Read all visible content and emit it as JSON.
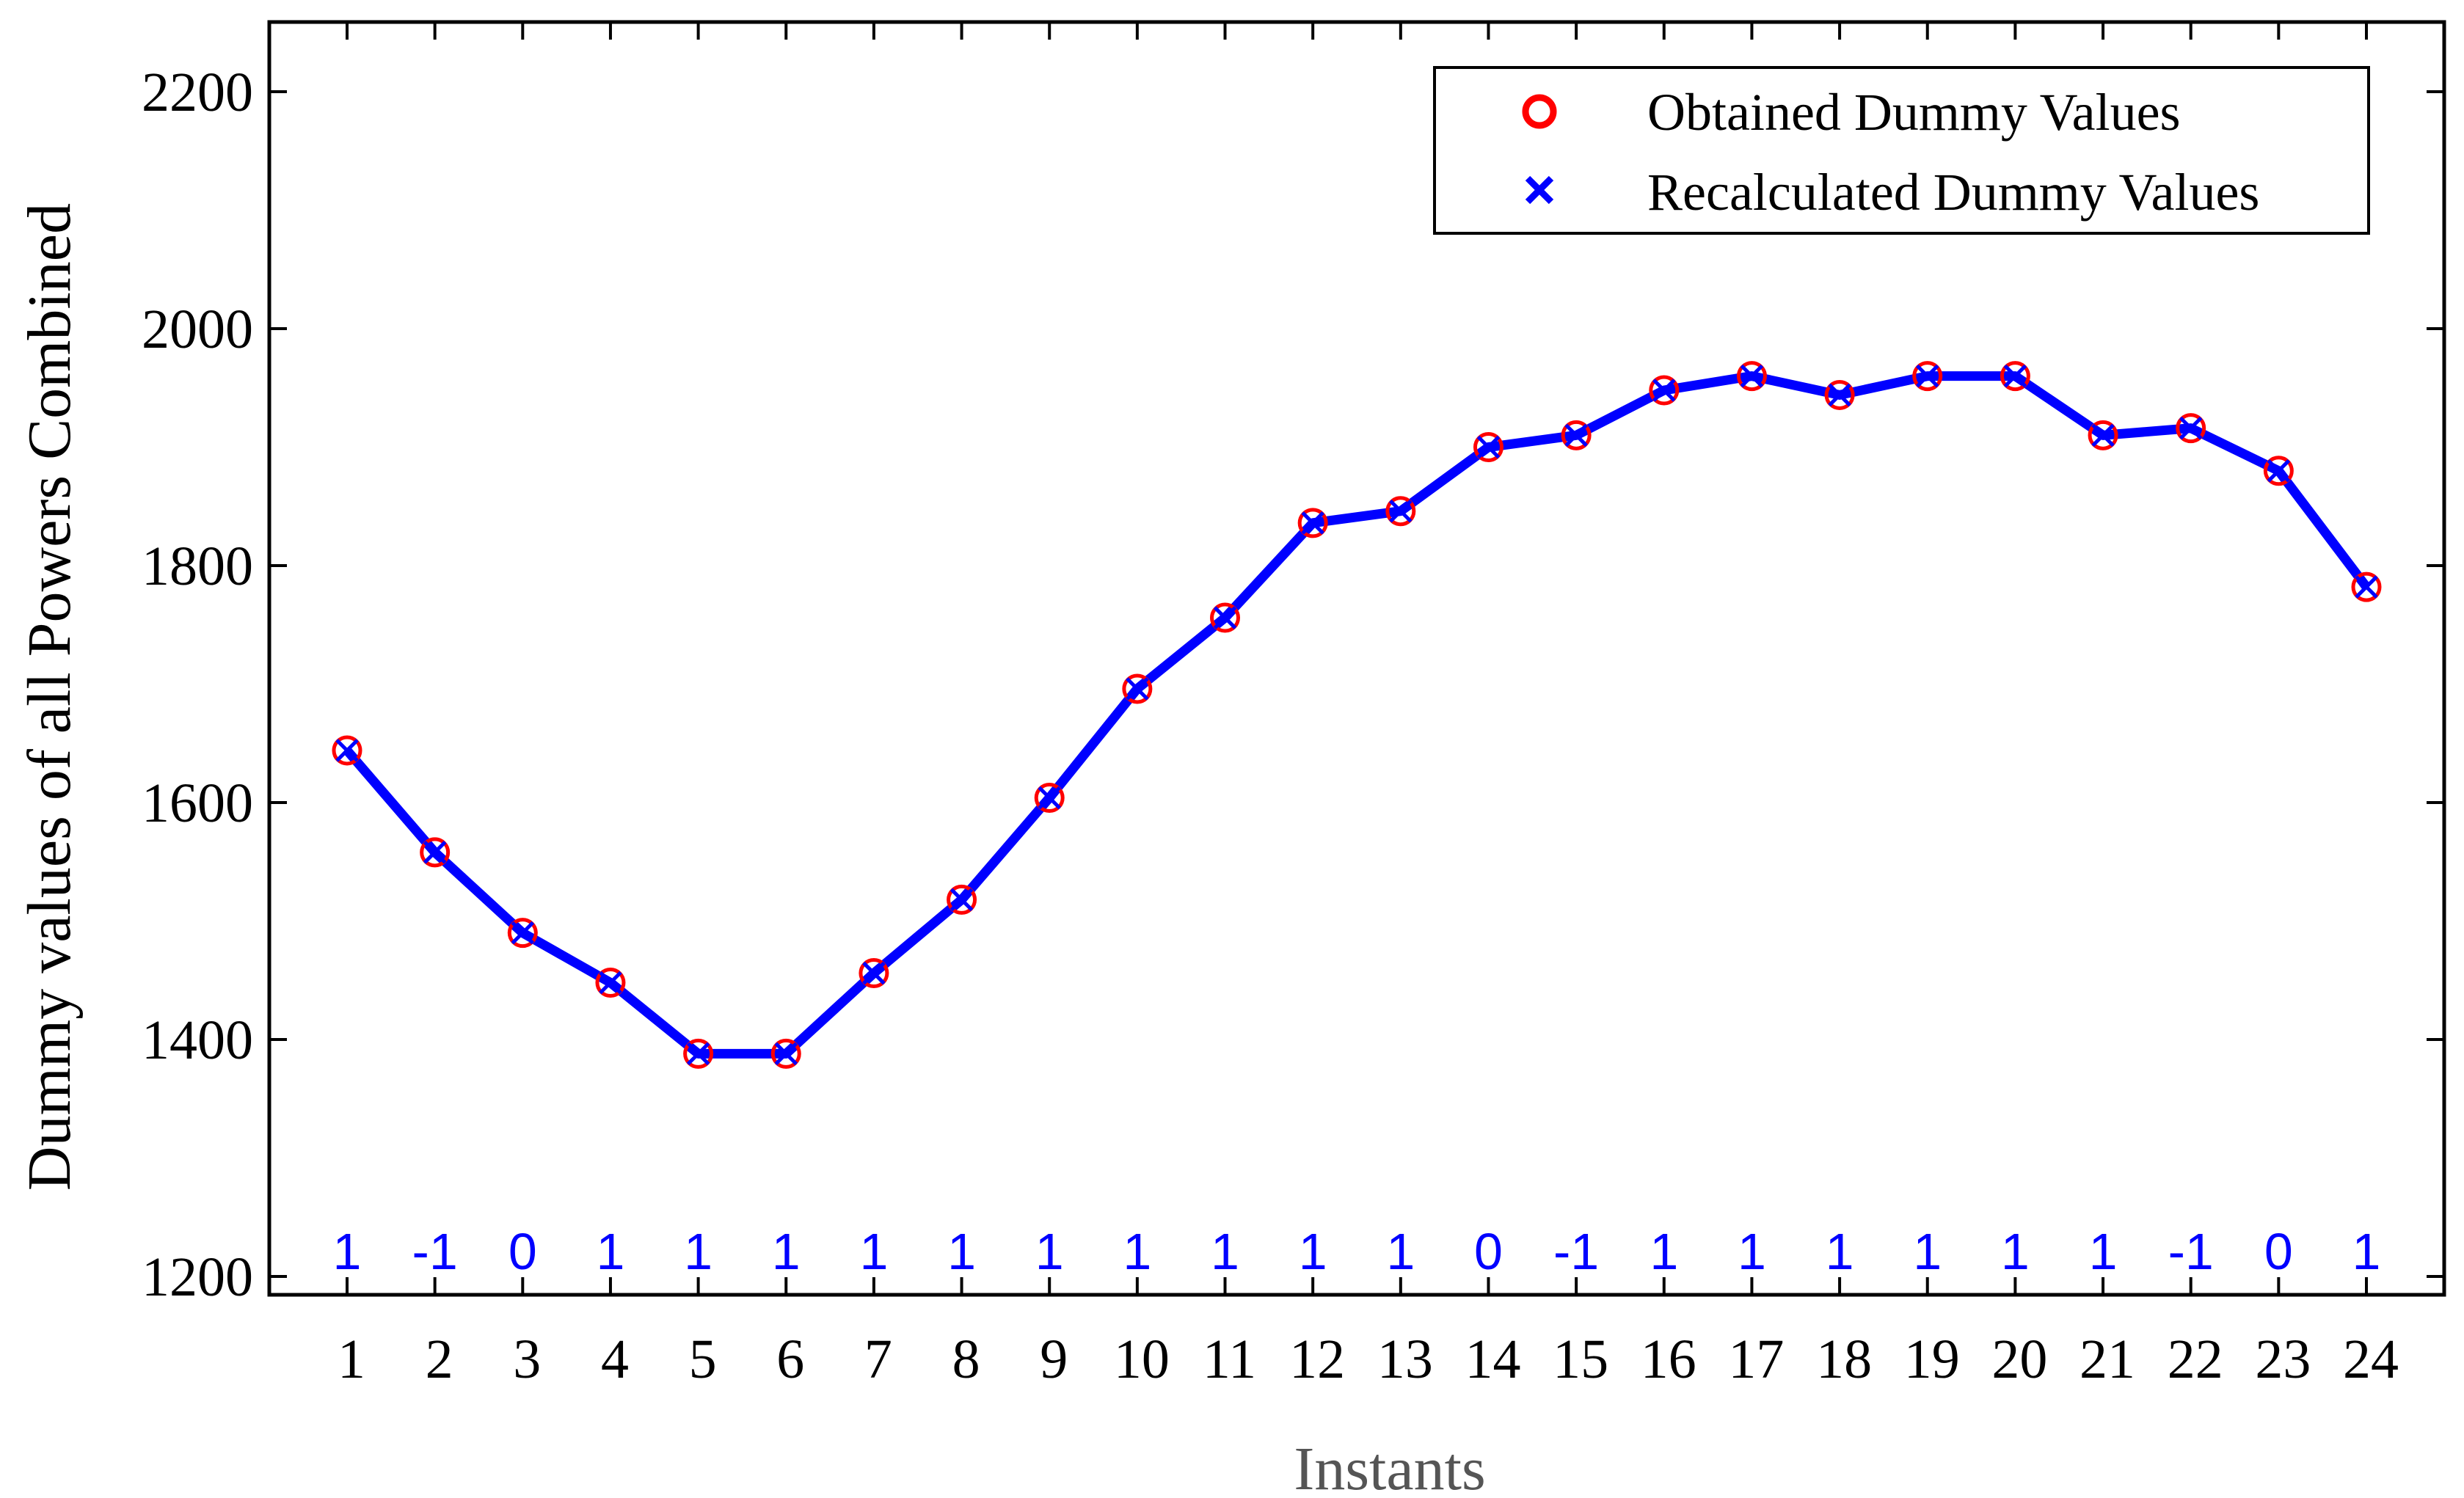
{
  "chart_data": {
    "type": "line",
    "xlabel": "Instants",
    "ylabel": "Dummy values of all Powers Combined",
    "x": [
      1,
      2,
      3,
      4,
      5,
      6,
      7,
      8,
      9,
      10,
      11,
      12,
      13,
      14,
      15,
      16,
      17,
      18,
      19,
      20,
      21,
      22,
      23,
      24
    ],
    "x_tick_labels": [
      "1",
      "2",
      "3",
      "4",
      "5",
      "6",
      "7",
      "8",
      "9",
      "10",
      "11",
      "12",
      "13",
      "14",
      "15",
      "16",
      "17",
      "18",
      "19",
      "20",
      "21",
      "22",
      "23",
      "24"
    ],
    "y_ticks": [
      1200,
      1400,
      1600,
      1800,
      2000,
      2200
    ],
    "y_tick_labels": [
      "1200",
      "1400",
      "1600",
      "1800",
      "2000",
      "2200"
    ],
    "xlim": [
      0,
      25
    ],
    "ylim": [
      1180,
      2260
    ],
    "grid": false,
    "legend_position": "top-right",
    "series": [
      {
        "name": "Obtained Dummy Values",
        "marker": "circle",
        "color": "#ff0000",
        "values": [
          1644,
          1558,
          1490,
          1448,
          1388,
          1388,
          1456,
          1518,
          1604,
          1696,
          1756,
          1836,
          1846,
          1900,
          1910,
          1948,
          1960,
          1944,
          1960,
          1960,
          1910,
          1916,
          1880,
          1782
        ]
      },
      {
        "name": "Recalculated Dummy Values",
        "marker": "x",
        "color": "#0000ff",
        "values": [
          1644,
          1558,
          1490,
          1448,
          1388,
          1388,
          1456,
          1518,
          1604,
          1696,
          1756,
          1836,
          1846,
          1900,
          1910,
          1948,
          1960,
          1944,
          1960,
          1960,
          1910,
          1916,
          1880,
          1782
        ]
      }
    ],
    "annotations": [
      "1",
      "-1",
      "0",
      "1",
      "1",
      "1",
      "1",
      "1",
      "1",
      "1",
      "1",
      "1",
      "1",
      "0",
      "-1",
      "1",
      "1",
      "1",
      "1",
      "1",
      "1",
      "-1",
      "0",
      "1"
    ],
    "annotation_color": "#0000ff",
    "line_color": "#0000ff"
  }
}
